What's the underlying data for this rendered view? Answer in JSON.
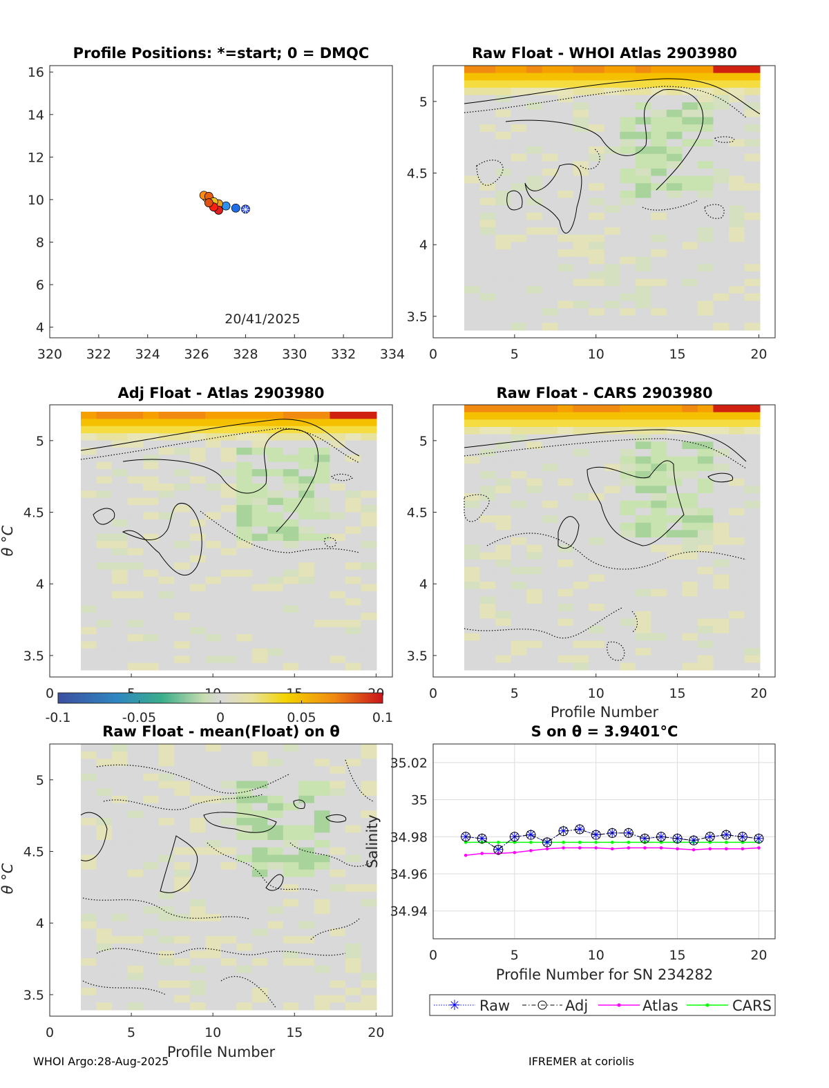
{
  "panels": {
    "positions": {
      "title": "Profile Positions: *=start; 0 = DMQC",
      "date_label": "20/41/2025",
      "x_ticks": [
        "320",
        "322",
        "324",
        "326",
        "328",
        "330",
        "332",
        "334"
      ],
      "y_ticks": [
        "4",
        "6",
        "8",
        "10",
        "12",
        "14",
        "16"
      ]
    },
    "raw_whoi": {
      "title": "Raw Float - WHOI Atlas  2903980"
    },
    "adj_atlas": {
      "title": "Adj Float - Atlas  2903980"
    },
    "raw_cars": {
      "title": "Raw Float - CARS  2903980",
      "xlabel": "Profile Number"
    },
    "raw_mean": {
      "title": "Raw Float - mean(Float) on θ",
      "xlabel": "Profile Number"
    },
    "salinity": {
      "title": "S on θ = 3.9401°C",
      "xlabel": "Profile Number for SN 234282",
      "ylabel": "Salinity"
    }
  },
  "theta_ticks": [
    "5",
    "4.5",
    "4",
    "3.5"
  ],
  "theta_label": "θ °C",
  "profile_ticks": [
    "0",
    "5",
    "10",
    "15",
    "20"
  ],
  "salinity_ticks": [
    "35.02",
    "35",
    "34.98",
    "34.96",
    "34.94"
  ],
  "colorbar": {
    "ticks": [
      "-0.1",
      "-0.05",
      "0",
      "0.05",
      "0.1"
    ]
  },
  "legend": {
    "raw": "Raw",
    "adj": "Adj",
    "atlas": "Atlas",
    "cars": "CARS"
  },
  "footer": {
    "left": "WHOI Argo:28-Aug-2025",
    "right": "IFREMER at coriolis"
  },
  "colors": {
    "raw": "#0000ff",
    "atlas": "#ff00ff",
    "cars": "#00ff00",
    "grid": "#dcdcdc"
  },
  "chart_data": [
    {
      "type": "scatter",
      "title": "Profile Positions: *=start; 0 = DMQC",
      "xlim": [
        320,
        334
      ],
      "ylim": [
        3.5,
        16.3
      ],
      "points": [
        {
          "x": 328.0,
          "y": 9.55,
          "marker": "start"
        },
        {
          "x": 327.6,
          "y": 9.6
        },
        {
          "x": 327.2,
          "y": 9.7
        },
        {
          "x": 326.9,
          "y": 9.8
        },
        {
          "x": 326.6,
          "y": 9.95
        },
        {
          "x": 326.4,
          "y": 10.1
        },
        {
          "x": 326.3,
          "y": 10.2
        },
        {
          "x": 326.5,
          "y": 10.15
        },
        {
          "x": 326.7,
          "y": 9.9
        },
        {
          "x": 326.9,
          "y": 9.5
        },
        {
          "x": 326.7,
          "y": 9.65
        },
        {
          "x": 326.5,
          "y": 9.85
        }
      ]
    },
    {
      "type": "heatmap",
      "title": "Raw Float - WHOI Atlas  2903980",
      "xlim": [
        0,
        21
      ],
      "ylim": [
        3.35,
        5.25
      ],
      "color_range": [
        -0.1,
        0.1
      ]
    },
    {
      "type": "heatmap",
      "title": "Adj Float - Atlas  2903980",
      "xlim": [
        0,
        21
      ],
      "ylim": [
        3.35,
        5.25
      ],
      "color_range": [
        -0.1,
        0.1
      ]
    },
    {
      "type": "heatmap",
      "title": "Raw Float - CARS  2903980",
      "xlim": [
        0,
        21
      ],
      "ylim": [
        3.35,
        5.25
      ],
      "color_range": [
        -0.1,
        0.1
      ],
      "xlabel": "Profile Number"
    },
    {
      "type": "heatmap",
      "title": "Raw Float - mean(Float) on θ",
      "xlim": [
        0,
        21
      ],
      "ylim": [
        3.35,
        5.25
      ],
      "color_range": [
        -0.1,
        0.1
      ],
      "xlabel": "Profile Number"
    },
    {
      "type": "line",
      "title": "S on θ = 3.9401°C",
      "xlabel": "Profile Number for SN 234282",
      "ylabel": "Salinity",
      "xlim": [
        0,
        21
      ],
      "ylim": [
        34.925,
        35.03
      ],
      "x": [
        2,
        3,
        4,
        5,
        6,
        7,
        8,
        9,
        10,
        11,
        12,
        13,
        14,
        15,
        16,
        17,
        18,
        19,
        20
      ],
      "series": [
        {
          "name": "Raw",
          "values": [
            34.98,
            34.979,
            34.973,
            34.98,
            34.981,
            34.977,
            34.983,
            34.984,
            34.981,
            34.982,
            34.982,
            34.979,
            34.98,
            34.979,
            34.978,
            34.98,
            34.981,
            34.98,
            34.979
          ]
        },
        {
          "name": "Adj",
          "values": [
            34.98,
            34.979,
            34.973,
            34.98,
            34.981,
            34.977,
            34.983,
            34.984,
            34.981,
            34.982,
            34.982,
            34.979,
            34.98,
            34.979,
            34.978,
            34.98,
            34.981,
            34.98,
            34.979
          ]
        },
        {
          "name": "Atlas",
          "values": [
            34.97,
            34.971,
            34.971,
            34.9715,
            34.9725,
            34.9735,
            34.974,
            34.974,
            34.974,
            34.9735,
            34.974,
            34.974,
            34.974,
            34.9735,
            34.973,
            34.9735,
            34.9735,
            34.9735,
            34.974
          ]
        },
        {
          "name": "CARS",
          "values": [
            34.977,
            34.977,
            34.977,
            34.977,
            34.977,
            34.977,
            34.977,
            34.977,
            34.977,
            34.977,
            34.977,
            34.977,
            34.977,
            34.977,
            34.977,
            34.977,
            34.977,
            34.977,
            34.977
          ]
        }
      ]
    }
  ]
}
